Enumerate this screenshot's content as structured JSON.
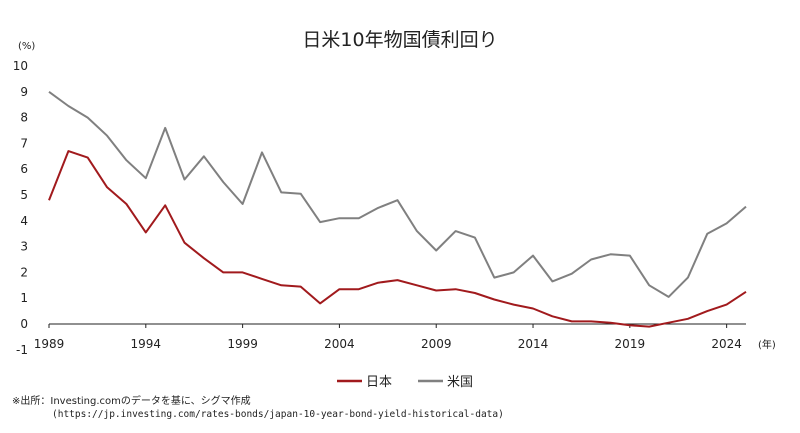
{
  "chart_data": {
    "type": "line",
    "title": "日米10年物国債利回り",
    "y_unit": "(%)",
    "x_unit": "(年)",
    "xlim": [
      1989,
      2025
    ],
    "ylim": [
      -1,
      10
    ],
    "y_ticks": [
      "-1",
      "0",
      "1",
      "2",
      "3",
      "4",
      "5",
      "6",
      "7",
      "8",
      "9",
      "10"
    ],
    "x_ticks": [
      "1989",
      "1994",
      "1999",
      "2004",
      "2009",
      "2014",
      "2019",
      "2024"
    ],
    "x": [
      1989,
      1990,
      1991,
      1992,
      1993,
      1994,
      1995,
      1996,
      1997,
      1998,
      1999,
      2000,
      2001,
      2002,
      2003,
      2004,
      2005,
      2006,
      2007,
      2008,
      2009,
      2010,
      2011,
      2012,
      2013,
      2014,
      2015,
      2016,
      2017,
      2018,
      2019,
      2020,
      2021,
      2022,
      2023,
      2024,
      2025
    ],
    "series": [
      {
        "name": "日本",
        "color": "#a11a1d",
        "values": [
          4.8,
          6.7,
          6.45,
          5.3,
          4.65,
          3.55,
          4.6,
          3.15,
          2.55,
          2.0,
          2.0,
          1.75,
          1.5,
          1.45,
          0.8,
          1.35,
          1.35,
          1.6,
          1.7,
          1.5,
          1.3,
          1.35,
          1.2,
          0.95,
          0.75,
          0.6,
          0.3,
          0.1,
          0.1,
          0.05,
          -0.05,
          -0.1,
          0.05,
          0.2,
          0.5,
          0.75,
          1.25
        ]
      },
      {
        "name": "米国",
        "color": "#808080",
        "values": [
          9.0,
          8.45,
          8.0,
          7.3,
          6.35,
          5.65,
          7.6,
          5.6,
          6.5,
          5.5,
          4.65,
          6.65,
          5.1,
          5.05,
          3.95,
          4.1,
          4.1,
          4.5,
          4.8,
          3.6,
          2.85,
          3.6,
          3.35,
          1.8,
          2.0,
          2.65,
          1.65,
          1.95,
          2.5,
          2.7,
          2.65,
          1.5,
          1.05,
          1.8,
          3.5,
          3.9,
          4.55
        ]
      }
    ],
    "legend_position": "bottom-center",
    "grid": false
  },
  "source": {
    "line1": "※出所：Investing.comのデータを基に、シグマ作成",
    "line2": "(https://jp.investing.com/rates-bonds/japan-10-year-bond-yield-historical-data)"
  }
}
